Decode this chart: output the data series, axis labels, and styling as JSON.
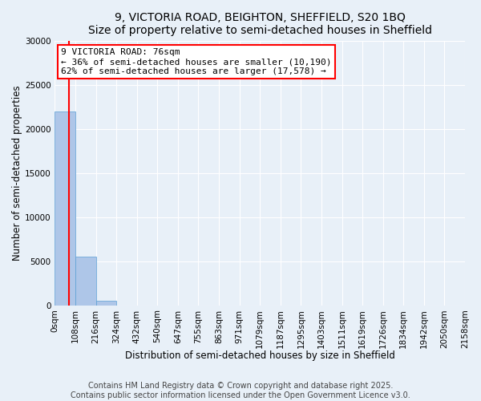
{
  "title_line1": "9, VICTORIA ROAD, BEIGHTON, SHEFFIELD, S20 1BQ",
  "title_line2": "Size of property relative to semi-detached houses in Sheffield",
  "xlabel": "Distribution of semi-detached houses by size in Sheffield",
  "ylabel": "Number of semi-detached properties",
  "bin_labels": [
    "0sqm",
    "108sqm",
    "216sqm",
    "324sqm",
    "432sqm",
    "540sqm",
    "647sqm",
    "755sqm",
    "863sqm",
    "971sqm",
    "1079sqm",
    "1187sqm",
    "1295sqm",
    "1403sqm",
    "1511sqm",
    "1619sqm",
    "1726sqm",
    "1834sqm",
    "1942sqm",
    "2050sqm",
    "2158sqm"
  ],
  "bar_values": [
    22000,
    5500,
    500,
    0,
    0,
    0,
    0,
    0,
    0,
    0,
    0,
    0,
    0,
    0,
    0,
    0,
    0,
    0,
    0,
    0
  ],
  "bar_color": "#aec6e8",
  "bar_edge_color": "#5a9fd4",
  "property_line_x": 76,
  "bin_width": 108,
  "ylim": [
    0,
    30000
  ],
  "yticks": [
    0,
    5000,
    10000,
    15000,
    20000,
    25000,
    30000
  ],
  "annotation_text": "9 VICTORIA ROAD: 76sqm\n← 36% of semi-detached houses are smaller (10,190)\n62% of semi-detached houses are larger (17,578) →",
  "annotation_box_color": "white",
  "annotation_box_edge": "red",
  "red_line_color": "red",
  "footer_text": "Contains HM Land Registry data © Crown copyright and database right 2025.\nContains public sector information licensed under the Open Government Licence v3.0.",
  "background_color": "#e8f0f8",
  "grid_color": "white",
  "title_fontsize": 10,
  "axis_label_fontsize": 8.5,
  "tick_fontsize": 7.5,
  "footer_fontsize": 7,
  "annotation_fontsize": 8
}
